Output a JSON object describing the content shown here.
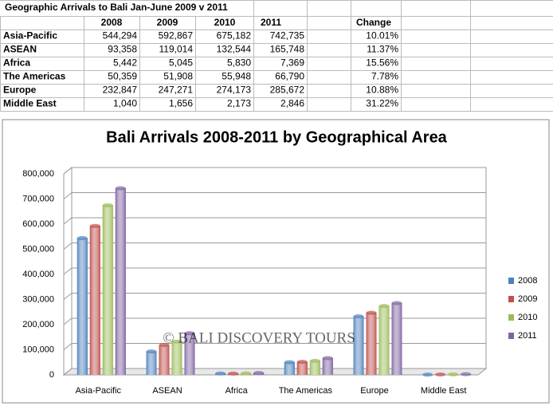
{
  "table": {
    "title": "Geographic Arrivals to Bali Jan-June 2009 v 2011",
    "header": [
      "2008",
      "2009",
      "2010",
      "2011",
      "Change"
    ],
    "rows": [
      [
        "Asia-Pacific",
        "544,294",
        "592,867",
        "675,182",
        "742,735",
        "10.01%"
      ],
      [
        "ASEAN",
        "93,358",
        "119,014",
        "132,544",
        "165,748",
        "11.37%"
      ],
      [
        "Africa",
        "5,442",
        "5,045",
        "5,830",
        "7,369",
        "15.56%"
      ],
      [
        "The Americas",
        "50,359",
        "51,908",
        "55,948",
        "66,790",
        "7.78%"
      ],
      [
        "Europe",
        "232,847",
        "247,271",
        "274,173",
        "285,672",
        "10.88%"
      ],
      [
        "Middle East",
        "1,040",
        "1,656",
        "2,173",
        "2,846",
        "31.22%"
      ]
    ]
  },
  "chart_data": {
    "type": "bar",
    "title": "Bali  Arrivals 2008-2011 by Geographical Area",
    "annotation": "© BALI DISCOVERY TOURS",
    "categories": [
      "Asia-Pacific",
      "ASEAN",
      "Africa",
      "The Americas",
      "Europe",
      "Middle East"
    ],
    "series": [
      {
        "name": "2008",
        "color": "#4f81bd",
        "values": [
          544294,
          93358,
          5442,
          50359,
          232847,
          1040
        ]
      },
      {
        "name": "2009",
        "color": "#c0504d",
        "values": [
          592867,
          119014,
          5045,
          51908,
          247271,
          1656
        ]
      },
      {
        "name": "2010",
        "color": "#9bbb59",
        "values": [
          675182,
          132544,
          5830,
          55948,
          274173,
          2173
        ]
      },
      {
        "name": "2011",
        "color": "#8064a2",
        "values": [
          742735,
          165748,
          7369,
          66790,
          285672,
          2846
        ]
      }
    ],
    "ylim": [
      0,
      800000
    ],
    "yticks": [
      0,
      {
        "value": 100000,
        "label": "100,000"
      },
      {
        "value": 200000,
        "label": "200,000"
      },
      {
        "value": 300000,
        "label": "300,000"
      },
      {
        "value": 400000,
        "label": "400,000"
      },
      {
        "value": 500000,
        "label": "500,000"
      },
      {
        "value": 600000,
        "label": "600,000"
      },
      {
        "value": 700000,
        "label": "700,000"
      },
      {
        "value": 800000,
        "label": "800,000"
      }
    ],
    "grid": true,
    "legend": "right"
  }
}
